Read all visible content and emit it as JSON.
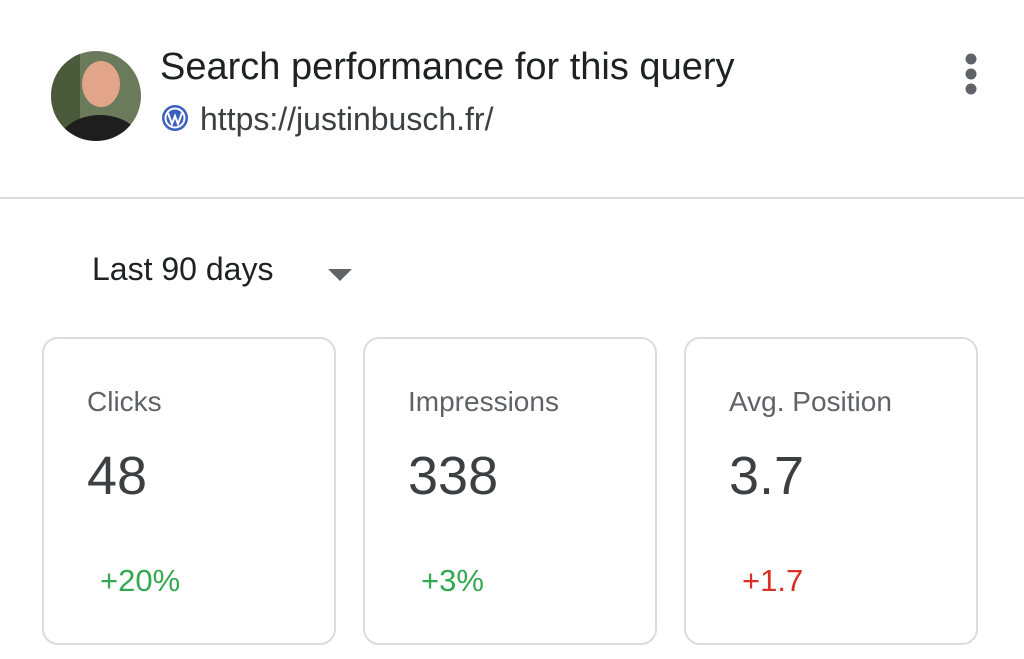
{
  "header": {
    "title": "Search performance for this query",
    "url": "https://justinbusch.fr/"
  },
  "period": "Last 90 days",
  "cards": [
    {
      "label": "Clicks",
      "value": "48",
      "change": "+20%",
      "color": "#34a853"
    },
    {
      "label": "Impressions",
      "value": "338",
      "change": "+3%",
      "color": "#34a853"
    },
    {
      "label": "Avg. Position",
      "value": "3.7",
      "change": "+1.7",
      "color": "#d93025"
    }
  ]
}
